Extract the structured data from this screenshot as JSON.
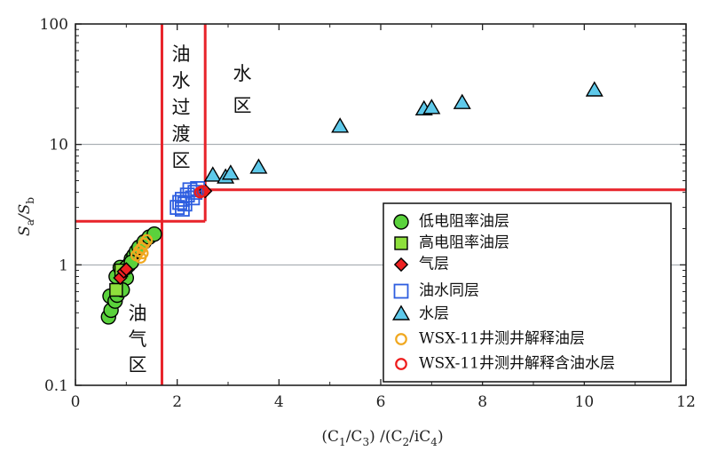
{
  "chart_data": {
    "type": "scatter",
    "x_axis": {
      "min": 0,
      "max": 12,
      "scale": "linear",
      "ticks": [
        "0",
        "2",
        "4",
        "6",
        "8",
        "10",
        "12"
      ],
      "label": {
        "main": "(C",
        "s1": "1",
        "m2": "/C",
        "s2": "3",
        "m3": ") /(C",
        "s3": "2",
        "m4": "/iC",
        "s4": "4",
        "m5": ")"
      }
    },
    "y_axis": {
      "min": 0.1,
      "max": 100,
      "scale": "log",
      "ticks": [
        "0.1",
        "1",
        "10",
        "100"
      ],
      "label": {
        "main": "S",
        "s1": "a",
        "m2": "/S",
        "s2": "b"
      }
    },
    "grid": "horizontal at decades",
    "zones": [
      {
        "label": [
          "油",
          "水",
          "过",
          "渡",
          "区"
        ]
      },
      {
        "label": [
          "水",
          "区"
        ]
      },
      {
        "label": [
          "油",
          "气",
          "区"
        ]
      }
    ],
    "boundaries": [
      {
        "x": 1.7,
        "from_y": 0.1,
        "to_y": 100
      },
      {
        "x": 2.55,
        "from_y": 2.3,
        "to_y": 100
      },
      {
        "y": 2.3,
        "from_x": 0,
        "to_x": 2.55
      },
      {
        "y": 4.2,
        "from_x": 2.55,
        "to_x": 12
      }
    ],
    "legend": {
      "position": "bottom-right",
      "entries": [
        "低电阻率油层",
        "高电阻率油层",
        "气层",
        "油水同层",
        "水层",
        "WSX-11井测井解释油层",
        "WSX-11井测井解释含油水层"
      ]
    },
    "series": [
      {
        "name": "低电阻率油层",
        "marker": "circle",
        "fill": "#5ad23c",
        "stroke": "#000000",
        "points": [
          [
            0.65,
            0.37
          ],
          [
            0.7,
            0.42
          ],
          [
            0.68,
            0.55
          ],
          [
            0.78,
            0.5
          ],
          [
            0.82,
            0.56
          ],
          [
            0.85,
            0.65
          ],
          [
            0.9,
            0.72
          ],
          [
            0.8,
            0.8
          ],
          [
            0.95,
            0.85
          ],
          [
            1.0,
            0.78
          ],
          [
            0.88,
            0.95
          ],
          [
            1.05,
            1.0
          ],
          [
            1.1,
            1.12
          ],
          [
            1.15,
            1.2
          ],
          [
            1.2,
            1.3
          ],
          [
            1.25,
            1.4
          ],
          [
            1.35,
            1.55
          ],
          [
            1.45,
            1.7
          ],
          [
            1.55,
            1.8
          ],
          [
            0.92,
            0.62
          ],
          [
            1.0,
            0.95
          ],
          [
            1.1,
            1.05
          ]
        ]
      },
      {
        "name": "高电阻率油层",
        "marker": "square",
        "fill": "#8ee03c",
        "stroke": "#000000",
        "points": [
          [
            0.8,
            0.62
          ],
          [
            0.9,
            0.9
          ]
        ]
      },
      {
        "name": "气层",
        "marker": "diamond",
        "fill": "#ee2222",
        "stroke": "#000000",
        "points": [
          [
            0.88,
            0.78
          ],
          [
            0.95,
            0.88
          ],
          [
            1.0,
            0.92
          ],
          [
            2.45,
            4.0
          ],
          [
            2.55,
            4.1
          ]
        ]
      },
      {
        "name": "油水同层",
        "marker": "square-open",
        "fill": "none",
        "stroke": "#2e5ee0",
        "points": [
          [
            2.0,
            3.0
          ],
          [
            2.05,
            3.3
          ],
          [
            2.1,
            3.5
          ],
          [
            2.15,
            3.2
          ],
          [
            2.2,
            3.8
          ],
          [
            2.25,
            4.2
          ],
          [
            2.3,
            3.6
          ],
          [
            2.35,
            4.0
          ],
          [
            2.4,
            4.3
          ],
          [
            2.1,
            2.9
          ]
        ]
      },
      {
        "name": "水层",
        "marker": "triangle",
        "fill": "#5ec9ea",
        "stroke": "#000000",
        "points": [
          [
            2.7,
            5.5
          ],
          [
            2.95,
            5.3
          ],
          [
            3.05,
            5.7
          ],
          [
            3.6,
            6.4
          ],
          [
            5.2,
            14
          ],
          [
            6.85,
            19.5
          ],
          [
            7.0,
            20
          ],
          [
            7.6,
            22
          ],
          [
            10.2,
            28
          ]
        ]
      },
      {
        "name": "WSX-11井测井解释油层",
        "marker": "circle-open",
        "fill": "none",
        "stroke": "#f0a820",
        "points": [
          [
            1.2,
            1.2
          ],
          [
            1.25,
            1.3
          ],
          [
            1.3,
            1.38
          ],
          [
            1.35,
            1.5
          ],
          [
            1.32,
            1.25
          ],
          [
            1.4,
            1.6
          ],
          [
            1.28,
            1.15
          ]
        ]
      },
      {
        "name": "WSX-11井测井解释含油水层",
        "marker": "circle-open",
        "fill": "none",
        "stroke": "#ee1c1c",
        "points": [
          [
            2.5,
            4.1
          ],
          [
            2.45,
            4.0
          ]
        ]
      }
    ]
  }
}
